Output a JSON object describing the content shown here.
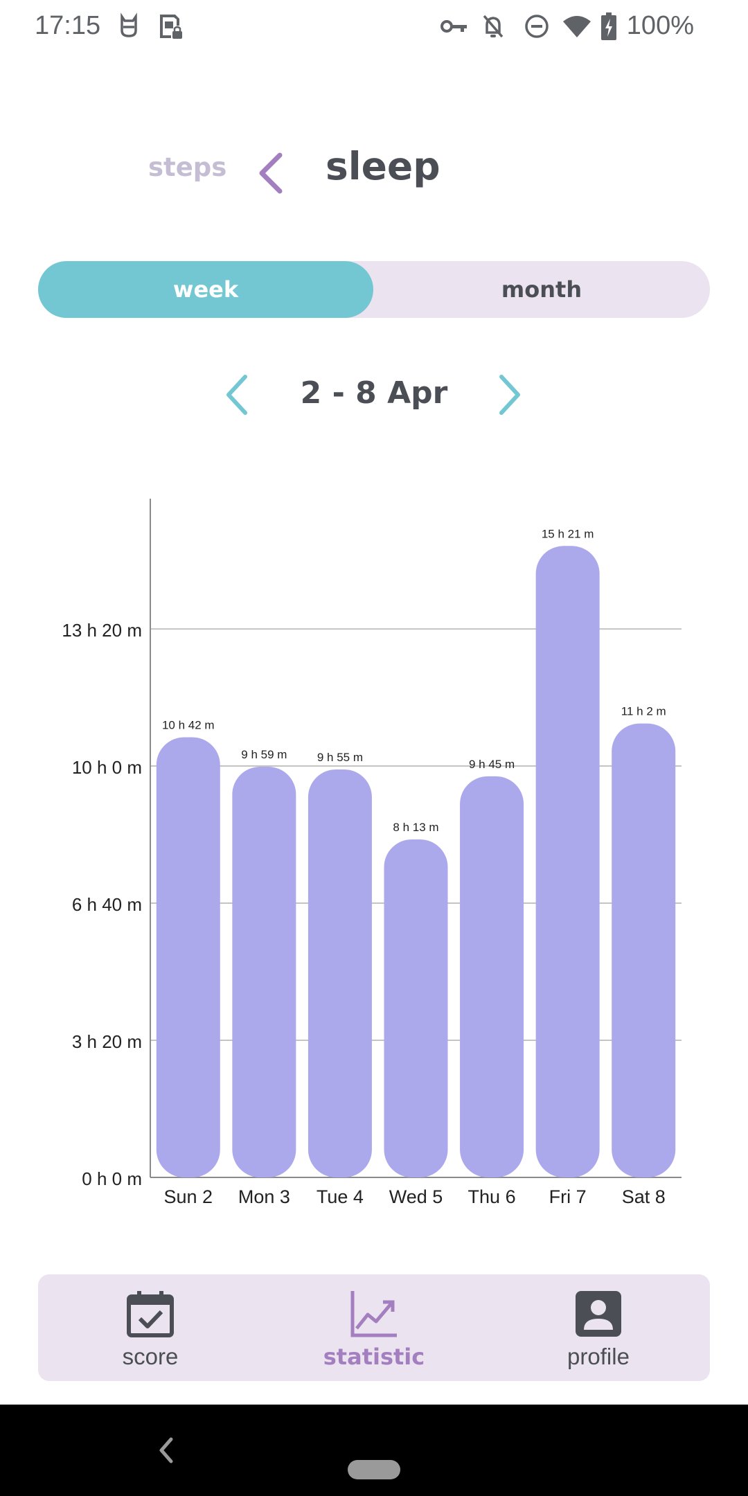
{
  "status_bar": {
    "time": "17:15",
    "battery_percent": "100%",
    "icons": [
      "cat-face-icon",
      "sim-lock-icon",
      "vpn-key-icon",
      "notifications-off-icon",
      "do-not-disturb-icon",
      "wifi-icon",
      "battery-charging-icon"
    ]
  },
  "header": {
    "prev_label": "steps",
    "title": "sleep",
    "back_icon": "chevron-left-icon"
  },
  "toggle": {
    "week_label": "week",
    "month_label": "month",
    "selected": "week"
  },
  "range": {
    "label": "2 - 8 Apr"
  },
  "chart_data": {
    "type": "bar",
    "categories": [
      "Sun 2",
      "Mon 3",
      "Tue 4",
      "Wed 5",
      "Thu 6",
      "Fri 7",
      "Sat 8"
    ],
    "values_minutes": [
      642,
      599,
      595,
      493,
      585,
      921,
      662
    ],
    "data_labels": [
      "10 h 42 m",
      "9 h 59 m",
      "9 h 55 m",
      "8 h 13 m",
      "9 h 45 m",
      "15 h 21 m",
      "11 h 2 m"
    ],
    "y_ticks_minutes": [
      0,
      200,
      400,
      600,
      800
    ],
    "y_tick_labels": [
      "0 h 0 m",
      "3 h 20 m",
      "6 h 40 m",
      "10 h 0 m",
      "13 h 20 m"
    ],
    "ylim_minutes": [
      0,
      990
    ],
    "grid": true,
    "bar_color": "#aca8ec"
  },
  "bottom_nav": {
    "items": [
      {
        "label": "score",
        "icon": "calendar-check-icon"
      },
      {
        "label": "statistic",
        "icon": "trend-chart-icon"
      },
      {
        "label": "profile",
        "icon": "account-box-icon"
      }
    ],
    "active": "statistic"
  },
  "colors": {
    "accent_teal": "#72c7d3",
    "accent_purple": "#a47fc0",
    "toggle_background": "#ebe3ef",
    "text_dark": "#4b4f55"
  }
}
